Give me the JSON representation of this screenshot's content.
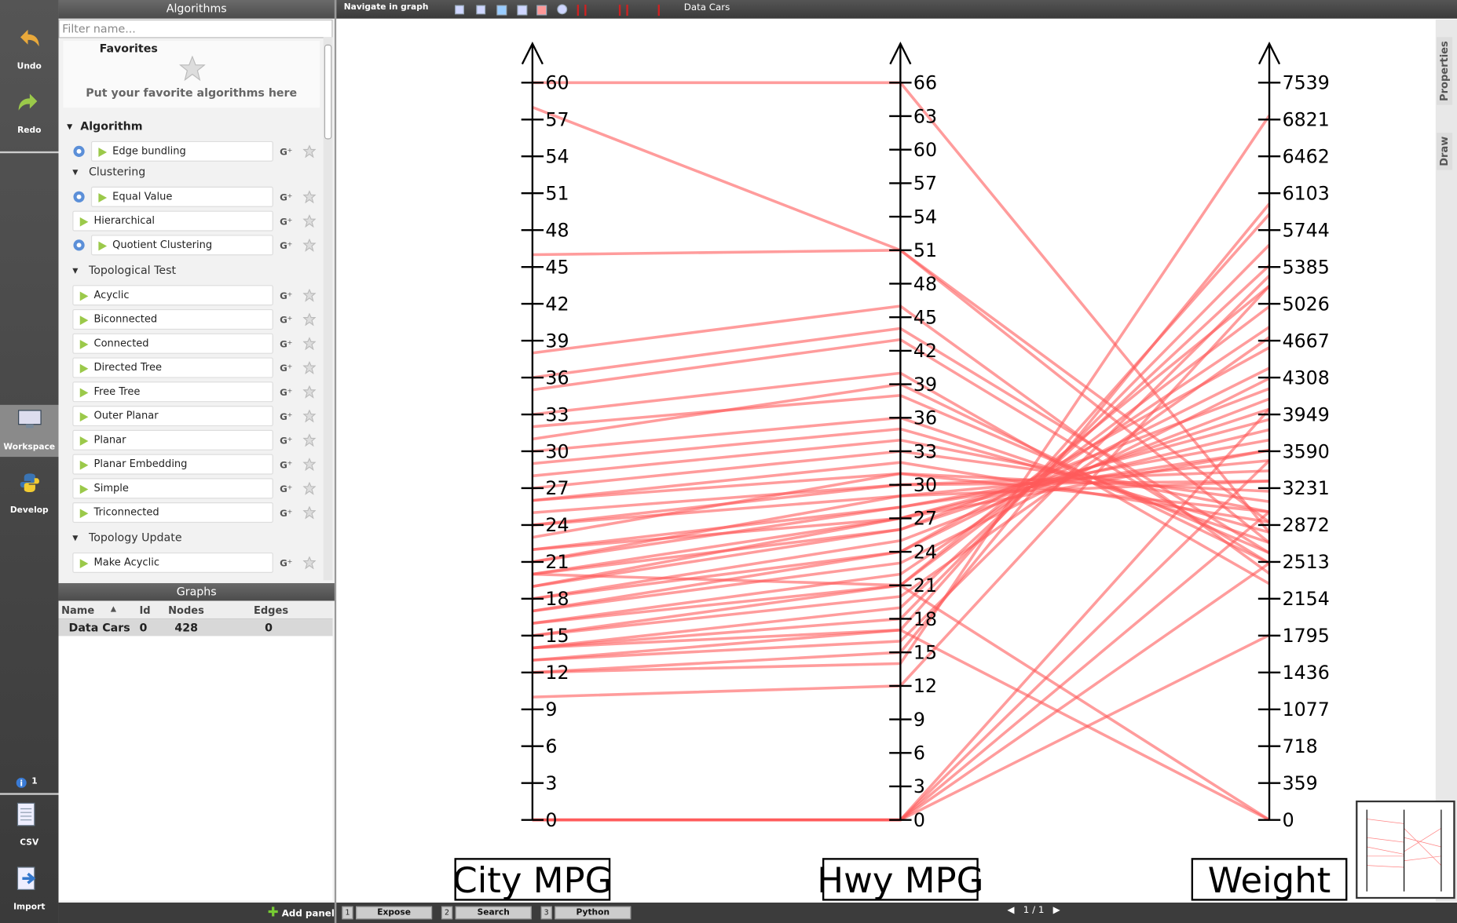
{
  "sidebar": {
    "buttons": [
      "Undo",
      "Redo",
      "Workspace",
      "Develop",
      "CSV",
      "Import"
    ],
    "notifications": 1
  },
  "algorithms": {
    "title": "Algorithms",
    "filter_placeholder": "Filter name...",
    "favorites": {
      "title": "Favorites",
      "hint": "Put your favorite algorithms here"
    },
    "tree": {
      "title": "Algorithm",
      "items": [
        {
          "name": "Edge bundling",
          "params": true
        }
      ],
      "groups": [
        {
          "title": "Clustering",
          "items": [
            {
              "name": "Equal Value",
              "params": true
            },
            {
              "name": "Hierarchical",
              "params": false
            },
            {
              "name": "Quotient Clustering",
              "params": true
            }
          ]
        },
        {
          "title": "Topological Test",
          "items": [
            {
              "name": "Acyclic",
              "params": false
            },
            {
              "name": "Biconnected",
              "params": false
            },
            {
              "name": "Connected",
              "params": false
            },
            {
              "name": "Directed Tree",
              "params": false
            },
            {
              "name": "Free Tree",
              "params": false
            },
            {
              "name": "Outer Planar",
              "params": false
            },
            {
              "name": "Planar",
              "params": false
            },
            {
              "name": "Planar Embedding",
              "params": false
            },
            {
              "name": "Simple",
              "params": false
            },
            {
              "name": "Triconnected",
              "params": false
            }
          ]
        },
        {
          "title": "Topology Update",
          "items": [
            {
              "name": "Make Acyclic",
              "params": false
            }
          ]
        }
      ]
    }
  },
  "graphs": {
    "title": "Graphs",
    "columns": [
      "Name",
      "Id",
      "Nodes",
      "Edges"
    ],
    "rows": [
      [
        "Data Cars",
        0,
        428,
        0
      ]
    ],
    "add_panel": "Add panel"
  },
  "workspace": {
    "tool": "Navigate in graph",
    "graph": "Data Cars",
    "tabs": [
      {
        "key": 1,
        "label": "Expose"
      },
      {
        "key": 2,
        "label": "Search"
      },
      {
        "key": 3,
        "label": "Python"
      }
    ],
    "page": "1 / 1",
    "side_tabs": [
      "Properties",
      "Draw"
    ]
  },
  "chart_data": {
    "type": "parallel",
    "color": "#ff5a5a",
    "axes": [
      {
        "label": "City MPG",
        "ticks": [
          0,
          3,
          6,
          9,
          12,
          15,
          18,
          21,
          24,
          27,
          30,
          33,
          36,
          39,
          42,
          45,
          48,
          51,
          54,
          57,
          60
        ]
      },
      {
        "label": "Hwy MPG",
        "ticks": [
          0,
          3,
          6,
          9,
          12,
          15,
          18,
          21,
          24,
          27,
          30,
          33,
          36,
          39,
          42,
          45,
          48,
          51,
          54,
          57,
          60,
          63,
          66
        ]
      },
      {
        "label": "Weight",
        "ticks": [
          0,
          359,
          718,
          1077,
          1436,
          1795,
          2154,
          2513,
          2872,
          3231,
          3590,
          3949,
          4308,
          4667,
          5026,
          5385,
          5744,
          6103,
          6462,
          6821,
          7539
        ]
      }
    ],
    "records": [
      [
        60,
        66,
        2800
      ],
      [
        58,
        51,
        2900
      ],
      [
        46,
        51,
        2700
      ],
      [
        38,
        46,
        2400
      ],
      [
        36,
        44,
        2600
      ],
      [
        35,
        43,
        2500
      ],
      [
        33,
        40,
        2300
      ],
      [
        32,
        38,
        2600
      ],
      [
        31,
        39,
        2500
      ],
      [
        30,
        36,
        2700
      ],
      [
        29,
        35,
        2800
      ],
      [
        28,
        34,
        3000
      ],
      [
        27,
        33,
        3100
      ],
      [
        26,
        32,
        2900
      ],
      [
        26,
        31,
        3200
      ],
      [
        25,
        30,
        3300
      ],
      [
        24,
        30,
        3400
      ],
      [
        24,
        29,
        3500
      ],
      [
        23,
        31,
        3000
      ],
      [
        22,
        28,
        3600
      ],
      [
        22,
        27,
        3800
      ],
      [
        21,
        29,
        3300
      ],
      [
        21,
        28,
        3700
      ],
      [
        20,
        27,
        3900
      ],
      [
        20,
        26,
        4000
      ],
      [
        19,
        26,
        4200
      ],
      [
        19,
        27,
        3600
      ],
      [
        18,
        25,
        4100
      ],
      [
        18,
        24,
        4400
      ],
      [
        17,
        24,
        4600
      ],
      [
        17,
        23,
        4300
      ],
      [
        16,
        22,
        4800
      ],
      [
        16,
        21,
        5000
      ],
      [
        15,
        21,
        5200
      ],
      [
        15,
        20,
        4700
      ],
      [
        14,
        19,
        5400
      ],
      [
        14,
        18,
        5600
      ],
      [
        13,
        17,
        5900
      ],
      [
        13,
        16,
        5300
      ],
      [
        12,
        15,
        6000
      ],
      [
        12,
        14,
        6900
      ],
      [
        10,
        12,
        5200
      ],
      [
        20,
        21,
        0
      ],
      [
        14,
        17,
        0
      ],
      [
        0,
        0,
        1800
      ],
      [
        0,
        0,
        2500
      ],
      [
        0,
        0,
        3000
      ],
      [
        0,
        0,
        3500
      ],
      [
        0,
        0,
        4000
      ]
    ]
  }
}
